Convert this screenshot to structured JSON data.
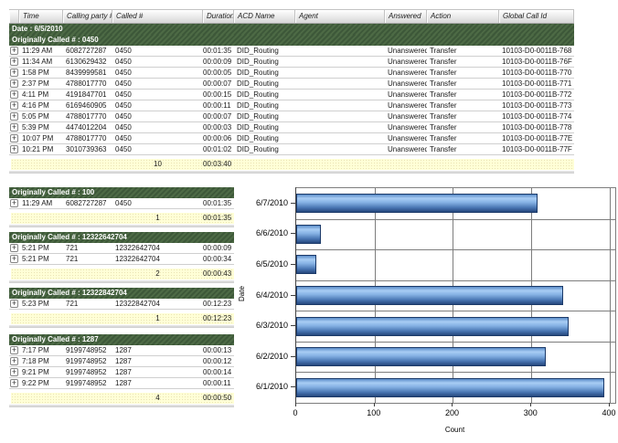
{
  "icons": {
    "expand": "+"
  },
  "colors": {
    "group_header_bg": "#44603c",
    "summary_bg": "#ffffd6",
    "bar_fill": "#6699dd",
    "bar_border": "#1c3a69",
    "grid": "#7d7d7d"
  },
  "main_table": {
    "columns": [
      "",
      "Time",
      "Calling party #",
      "Called #",
      "Duration",
      "ACD Name",
      "Agent",
      "Answered",
      "Action",
      "Global Call Id"
    ],
    "date_header": "Date : 6/5/2010",
    "group": {
      "title": "Originally Called # : 0450",
      "rows": [
        {
          "time": "11:29 AM",
          "calling": "6082727287",
          "called": "0450",
          "duration": "00:01:35",
          "acd": "DID_Routing",
          "agent": "",
          "answered": "Unanswered",
          "action": "Transfer",
          "call_id": "10103-D0-0011B-768"
        },
        {
          "time": "11:34 AM",
          "calling": "6130629432",
          "called": "0450",
          "duration": "00:00:09",
          "acd": "DID_Routing",
          "agent": "",
          "answered": "Unanswered",
          "action": "Transfer",
          "call_id": "10103-D0-0011B-76F"
        },
        {
          "time": "1:58 PM",
          "calling": "8439999581",
          "called": "0450",
          "duration": "00:00:05",
          "acd": "DID_Routing",
          "agent": "",
          "answered": "Unanswered",
          "action": "Transfer",
          "call_id": "10103-D0-0011B-770"
        },
        {
          "time": "2:37 PM",
          "calling": "4788017770",
          "called": "0450",
          "duration": "00:00:07",
          "acd": "DID_Routing",
          "agent": "",
          "answered": "Unanswered",
          "action": "Transfer",
          "call_id": "10103-D0-0011B-771"
        },
        {
          "time": "4:11 PM",
          "calling": "4191847701",
          "called": "0450",
          "duration": "00:00:15",
          "acd": "DID_Routing",
          "agent": "",
          "answered": "Unanswered",
          "action": "Transfer",
          "call_id": "10103-D0-0011B-772"
        },
        {
          "time": "4:16 PM",
          "calling": "6169460905",
          "called": "0450",
          "duration": "00:00:11",
          "acd": "DID_Routing",
          "agent": "",
          "answered": "Unanswered",
          "action": "Transfer",
          "call_id": "10103-D0-0011B-773"
        },
        {
          "time": "5:05 PM",
          "calling": "4788017770",
          "called": "0450",
          "duration": "00:00:07",
          "acd": "DID_Routing",
          "agent": "",
          "answered": "Unanswered",
          "action": "Transfer",
          "call_id": "10103-D0-0011B-774"
        },
        {
          "time": "5:39 PM",
          "calling": "4474012204",
          "called": "0450",
          "duration": "00:00:03",
          "acd": "DID_Routing",
          "agent": "",
          "answered": "Unanswered",
          "action": "Transfer",
          "call_id": "10103-D0-0011B-778"
        },
        {
          "time": "10:07 PM",
          "calling": "4788017770",
          "called": "0450",
          "duration": "00:00:06",
          "acd": "DID_Routing",
          "agent": "",
          "answered": "Unanswered",
          "action": "Transfer",
          "call_id": "10103-D0-0011B-77E"
        },
        {
          "time": "10:21 PM",
          "calling": "3010739363",
          "called": "0450",
          "duration": "00:01:02",
          "acd": "DID_Routing",
          "agent": "",
          "answered": "Unanswered",
          "action": "Transfer",
          "call_id": "10103-D0-0011B-77F"
        }
      ],
      "summary": {
        "count": "10",
        "total_duration": "00:03:40"
      }
    }
  },
  "sub_tables": [
    {
      "title": "Originally Called # : 100",
      "rows": [
        {
          "time": "11:29 AM",
          "calling": "6082727287",
          "called": "0450",
          "duration": "00:01:35"
        }
      ],
      "summary": {
        "count": "1",
        "total_duration": "00:01:35"
      }
    },
    {
      "title": "Originally Called # : 12322642704",
      "rows": [
        {
          "time": "5:21 PM",
          "calling": "721",
          "called": "12322642704",
          "duration": "00:00:09"
        },
        {
          "time": "5:21 PM",
          "calling": "721",
          "called": "12322642704",
          "duration": "00:00:34"
        }
      ],
      "summary": {
        "count": "2",
        "total_duration": "00:00:43"
      }
    },
    {
      "title": "Originally Called # : 12322842704",
      "rows": [
        {
          "time": "5:23 PM",
          "calling": "721",
          "called": "12322842704",
          "duration": "00:12:23"
        }
      ],
      "summary": {
        "count": "1",
        "total_duration": "00:12:23"
      }
    },
    {
      "title": "Originally Called # : 1287",
      "rows": [
        {
          "time": "7:17 PM",
          "calling": "9199748952",
          "called": "1287",
          "duration": "00:00:13"
        },
        {
          "time": "7:18 PM",
          "calling": "9199748952",
          "called": "1287",
          "duration": "00:00:12"
        },
        {
          "time": "9:21 PM",
          "calling": "9199748952",
          "called": "1287",
          "duration": "00:00:14"
        },
        {
          "time": "9:22 PM",
          "calling": "9199748952",
          "called": "1287",
          "duration": "00:00:11"
        }
      ],
      "summary": {
        "count": "4",
        "total_duration": "00:00:50"
      }
    }
  ],
  "chart_data": {
    "type": "bar",
    "orientation": "horizontal",
    "title": "",
    "categories": [
      "6/7/2010",
      "6/6/2010",
      "6/5/2010",
      "6/4/2010",
      "6/3/2010",
      "6/2/2010",
      "6/1/2010"
    ],
    "values": [
      308,
      32,
      26,
      340,
      348,
      318,
      393
    ],
    "xlabel": "Count",
    "ylabel": "Date",
    "xticks": [
      0,
      100,
      200,
      300,
      400
    ],
    "xlim": [
      0,
      407
    ],
    "grid": true,
    "legend": "none"
  }
}
